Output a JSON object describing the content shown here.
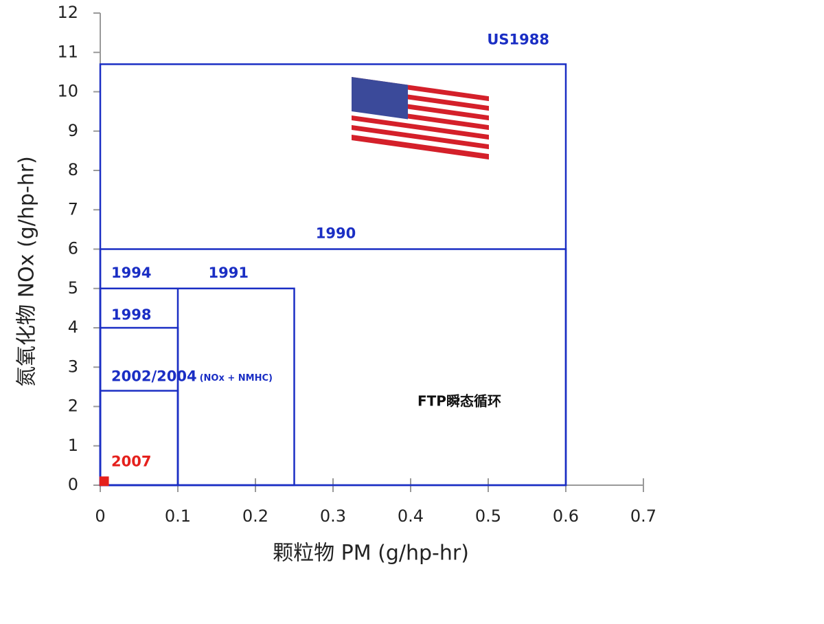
{
  "chart_data": {
    "type": "box",
    "x_label": "颗粒物 PM (g/hp-hr)",
    "y_label": "氮氧化物 NOx (g/hp-hr)",
    "annotation": "FTP瞬态循环",
    "xlim": [
      0,
      0.7
    ],
    "ylim": [
      0,
      12
    ],
    "xticks": [
      0,
      0.1,
      0.2,
      0.3,
      0.4,
      0.5,
      0.6,
      0.7
    ],
    "yticks": [
      0,
      1,
      2,
      3,
      4,
      5,
      6,
      7,
      8,
      9,
      10,
      11,
      12
    ],
    "series": [
      {
        "name": "US1988",
        "color": "#1a2ec4",
        "x": 0.6,
        "y": 10.7
      },
      {
        "name": "1990",
        "color": "#1a2ec4",
        "x": 0.6,
        "y": 6
      },
      {
        "name": "1991",
        "color": "#1a2ec4",
        "x": 0.25,
        "y": 5
      },
      {
        "name": "1994",
        "color": "#1a2ec4",
        "x": 0.1,
        "y": 5
      },
      {
        "name": "1998",
        "color": "#1a2ec4",
        "x": 0.1,
        "y": 4
      },
      {
        "name": "2002/2004",
        "note": "(NOx + NMHC)",
        "color": "#1a2ec4",
        "x": 0.1,
        "y": 2.4
      },
      {
        "name": "2007",
        "color": "#e5201c",
        "x": 0.01,
        "y": 0.2,
        "filled": true
      }
    ]
  }
}
